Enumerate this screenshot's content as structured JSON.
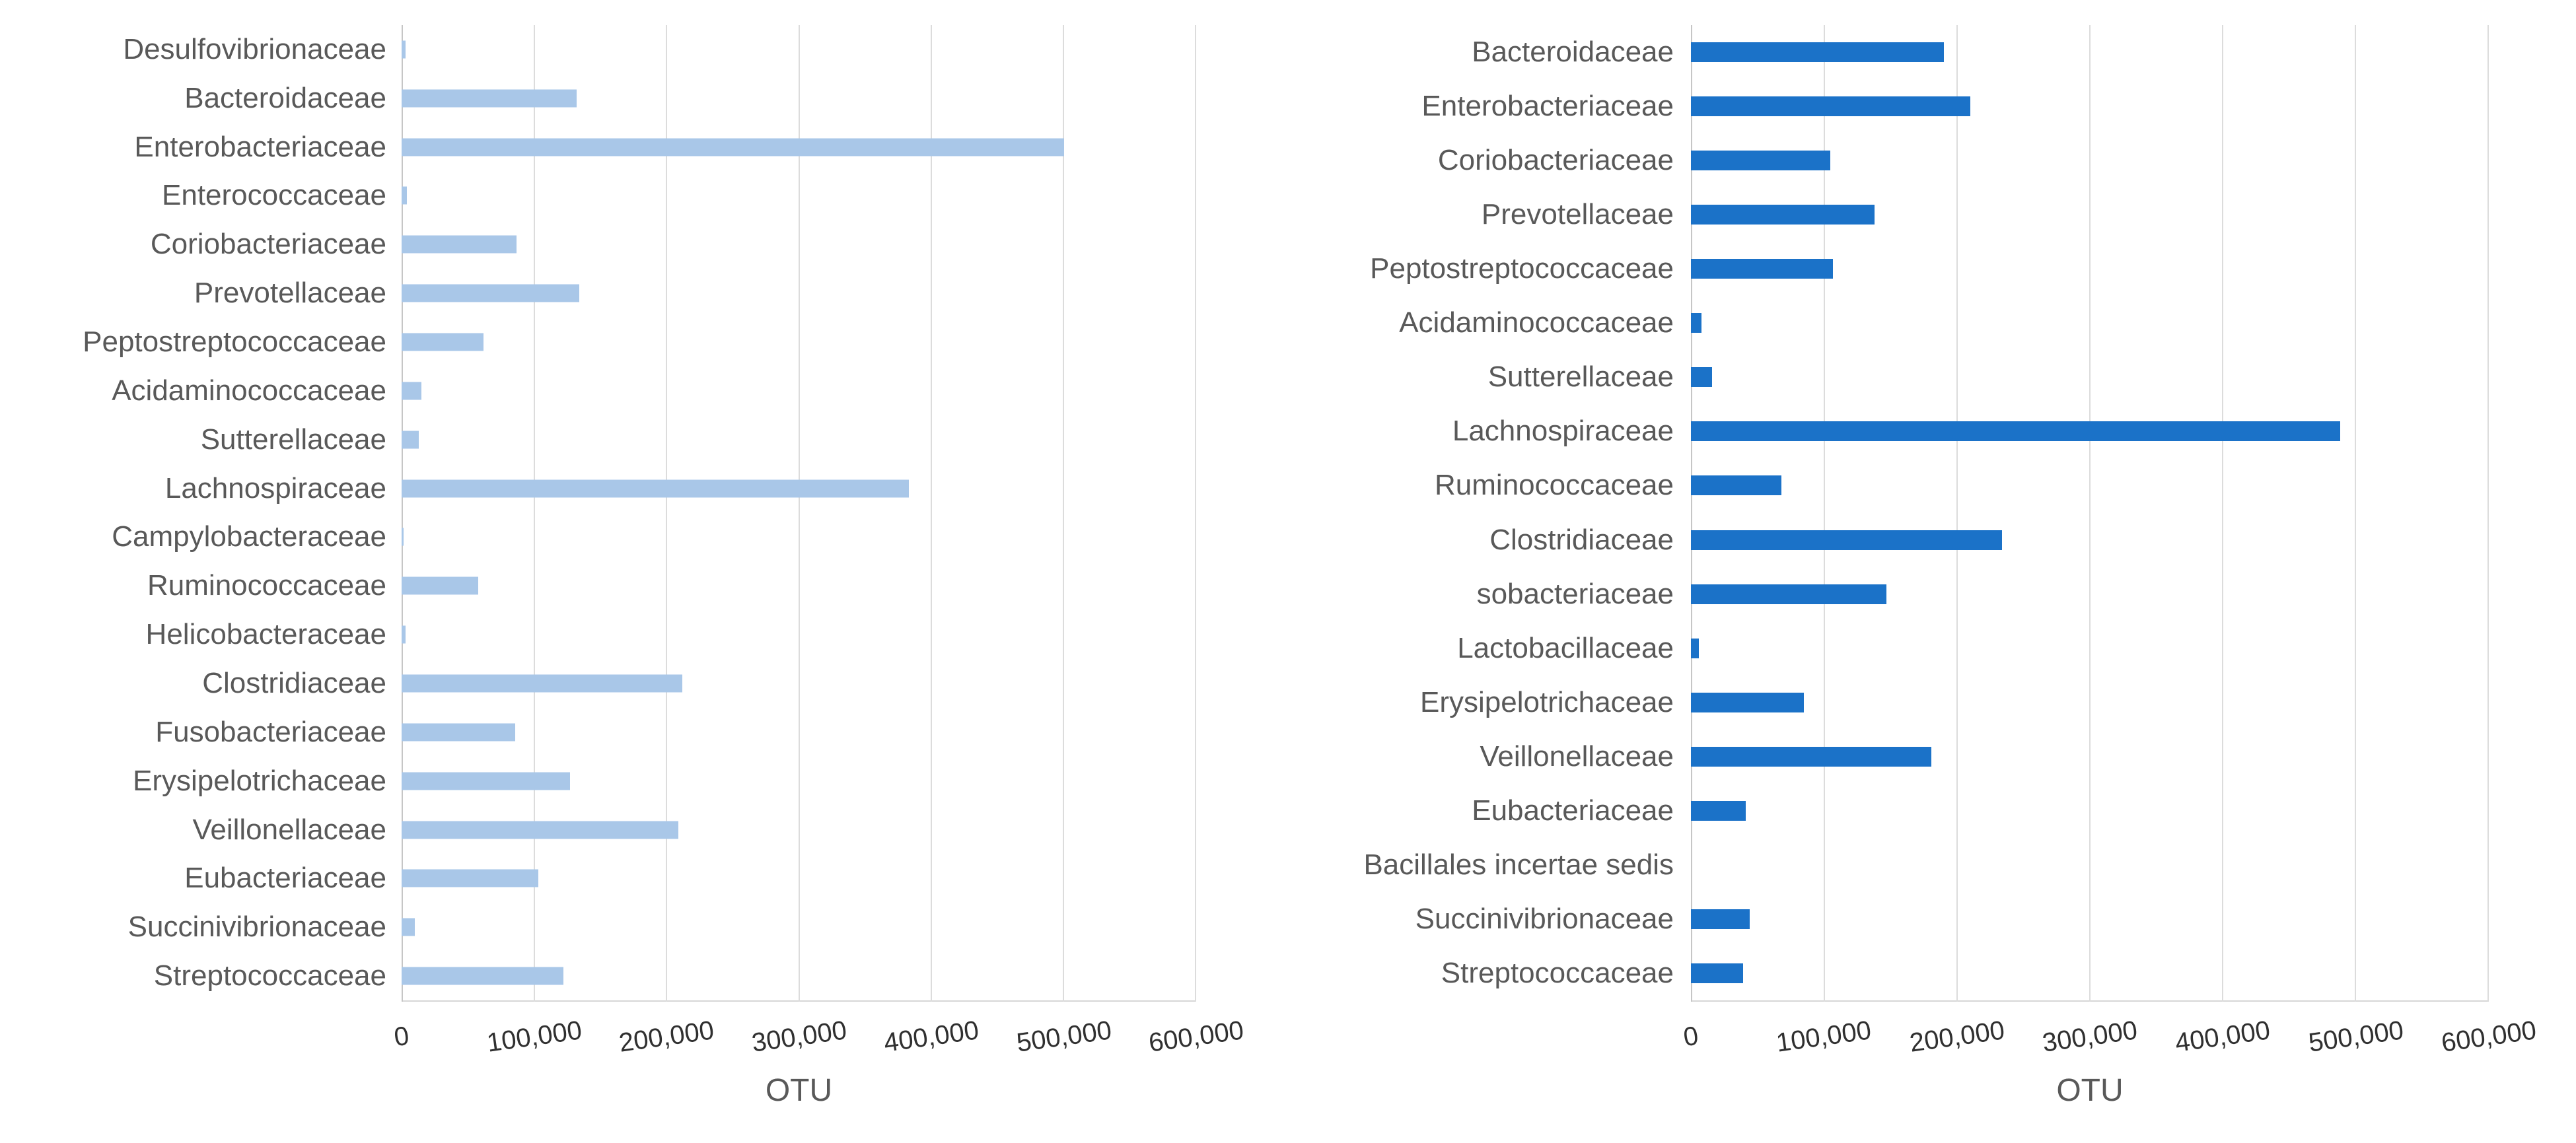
{
  "figure": {
    "background": "#ffffff",
    "text_color_labels": "#595959",
    "text_color_ticks": "#303030",
    "gridline_color": "#dcdcdc"
  },
  "chart_data": [
    {
      "type": "bar",
      "orientation": "horizontal",
      "xlabel": "OTU",
      "bar_color": "#a9c7e8",
      "xlim": [
        0,
        600000
      ],
      "grid": true,
      "x_ticks": [
        "0",
        "100,000",
        "200,000",
        "300,000",
        "400,000",
        "500,000",
        "600,000"
      ],
      "categories": [
        "Desulfovibrionaceae",
        "Bacteroidaceae",
        "Enterobacteriaceae",
        "Enterococcaceae",
        "Coriobacteriaceae",
        "Prevotellaceae",
        "Peptostreptococcaceae",
        "Acidaminococcaceae",
        "Sutterellaceae",
        "Lachnospiraceae",
        "Campylobacteraceae",
        "Ruminococcaceae",
        "Helicobacteraceae",
        "Clostridiaceae",
        "Fusobacteriaceae",
        "Erysipelotrichaceae",
        "Veillonellaceae",
        "Eubacteriaceae",
        "Succinivibrionaceae",
        "Streptococcaceae"
      ],
      "values": [
        3000,
        132000,
        500000,
        4000,
        87000,
        134000,
        62000,
        15000,
        13000,
        383000,
        1500,
        58000,
        3000,
        212000,
        86000,
        127000,
        209000,
        103000,
        10000,
        122000
      ]
    },
    {
      "type": "bar",
      "orientation": "horizontal",
      "xlabel": "OTU",
      "bar_color": "#1b72c8",
      "xlim": [
        0,
        600000
      ],
      "grid": true,
      "x_ticks": [
        "0",
        "100,000",
        "200,000",
        "300,000",
        "400,000",
        "500,000",
        "600,000"
      ],
      "categories": [
        "Bacteroidaceae",
        "Enterobacteriaceae",
        "Coriobacteriaceae",
        "Prevotellaceae",
        "Peptostreptococcaceae",
        "Acidaminococcaceae",
        "Sutterellaceae",
        "Lachnospiraceae",
        "Ruminococcaceae",
        "Clostridiaceae",
        "sobacteriaceae",
        "Lactobacillaceae",
        "Erysipelotrichaceae",
        "Veillonellaceae",
        "Eubacteriaceae",
        "Bacillales incertae sedis",
        "Succinivibrionaceae",
        "Streptococcaceae"
      ],
      "values": [
        190000,
        210000,
        105000,
        138000,
        107000,
        8000,
        16000,
        488000,
        68000,
        234000,
        147000,
        6000,
        85000,
        181000,
        41000,
        0,
        44000,
        39000
      ]
    }
  ]
}
